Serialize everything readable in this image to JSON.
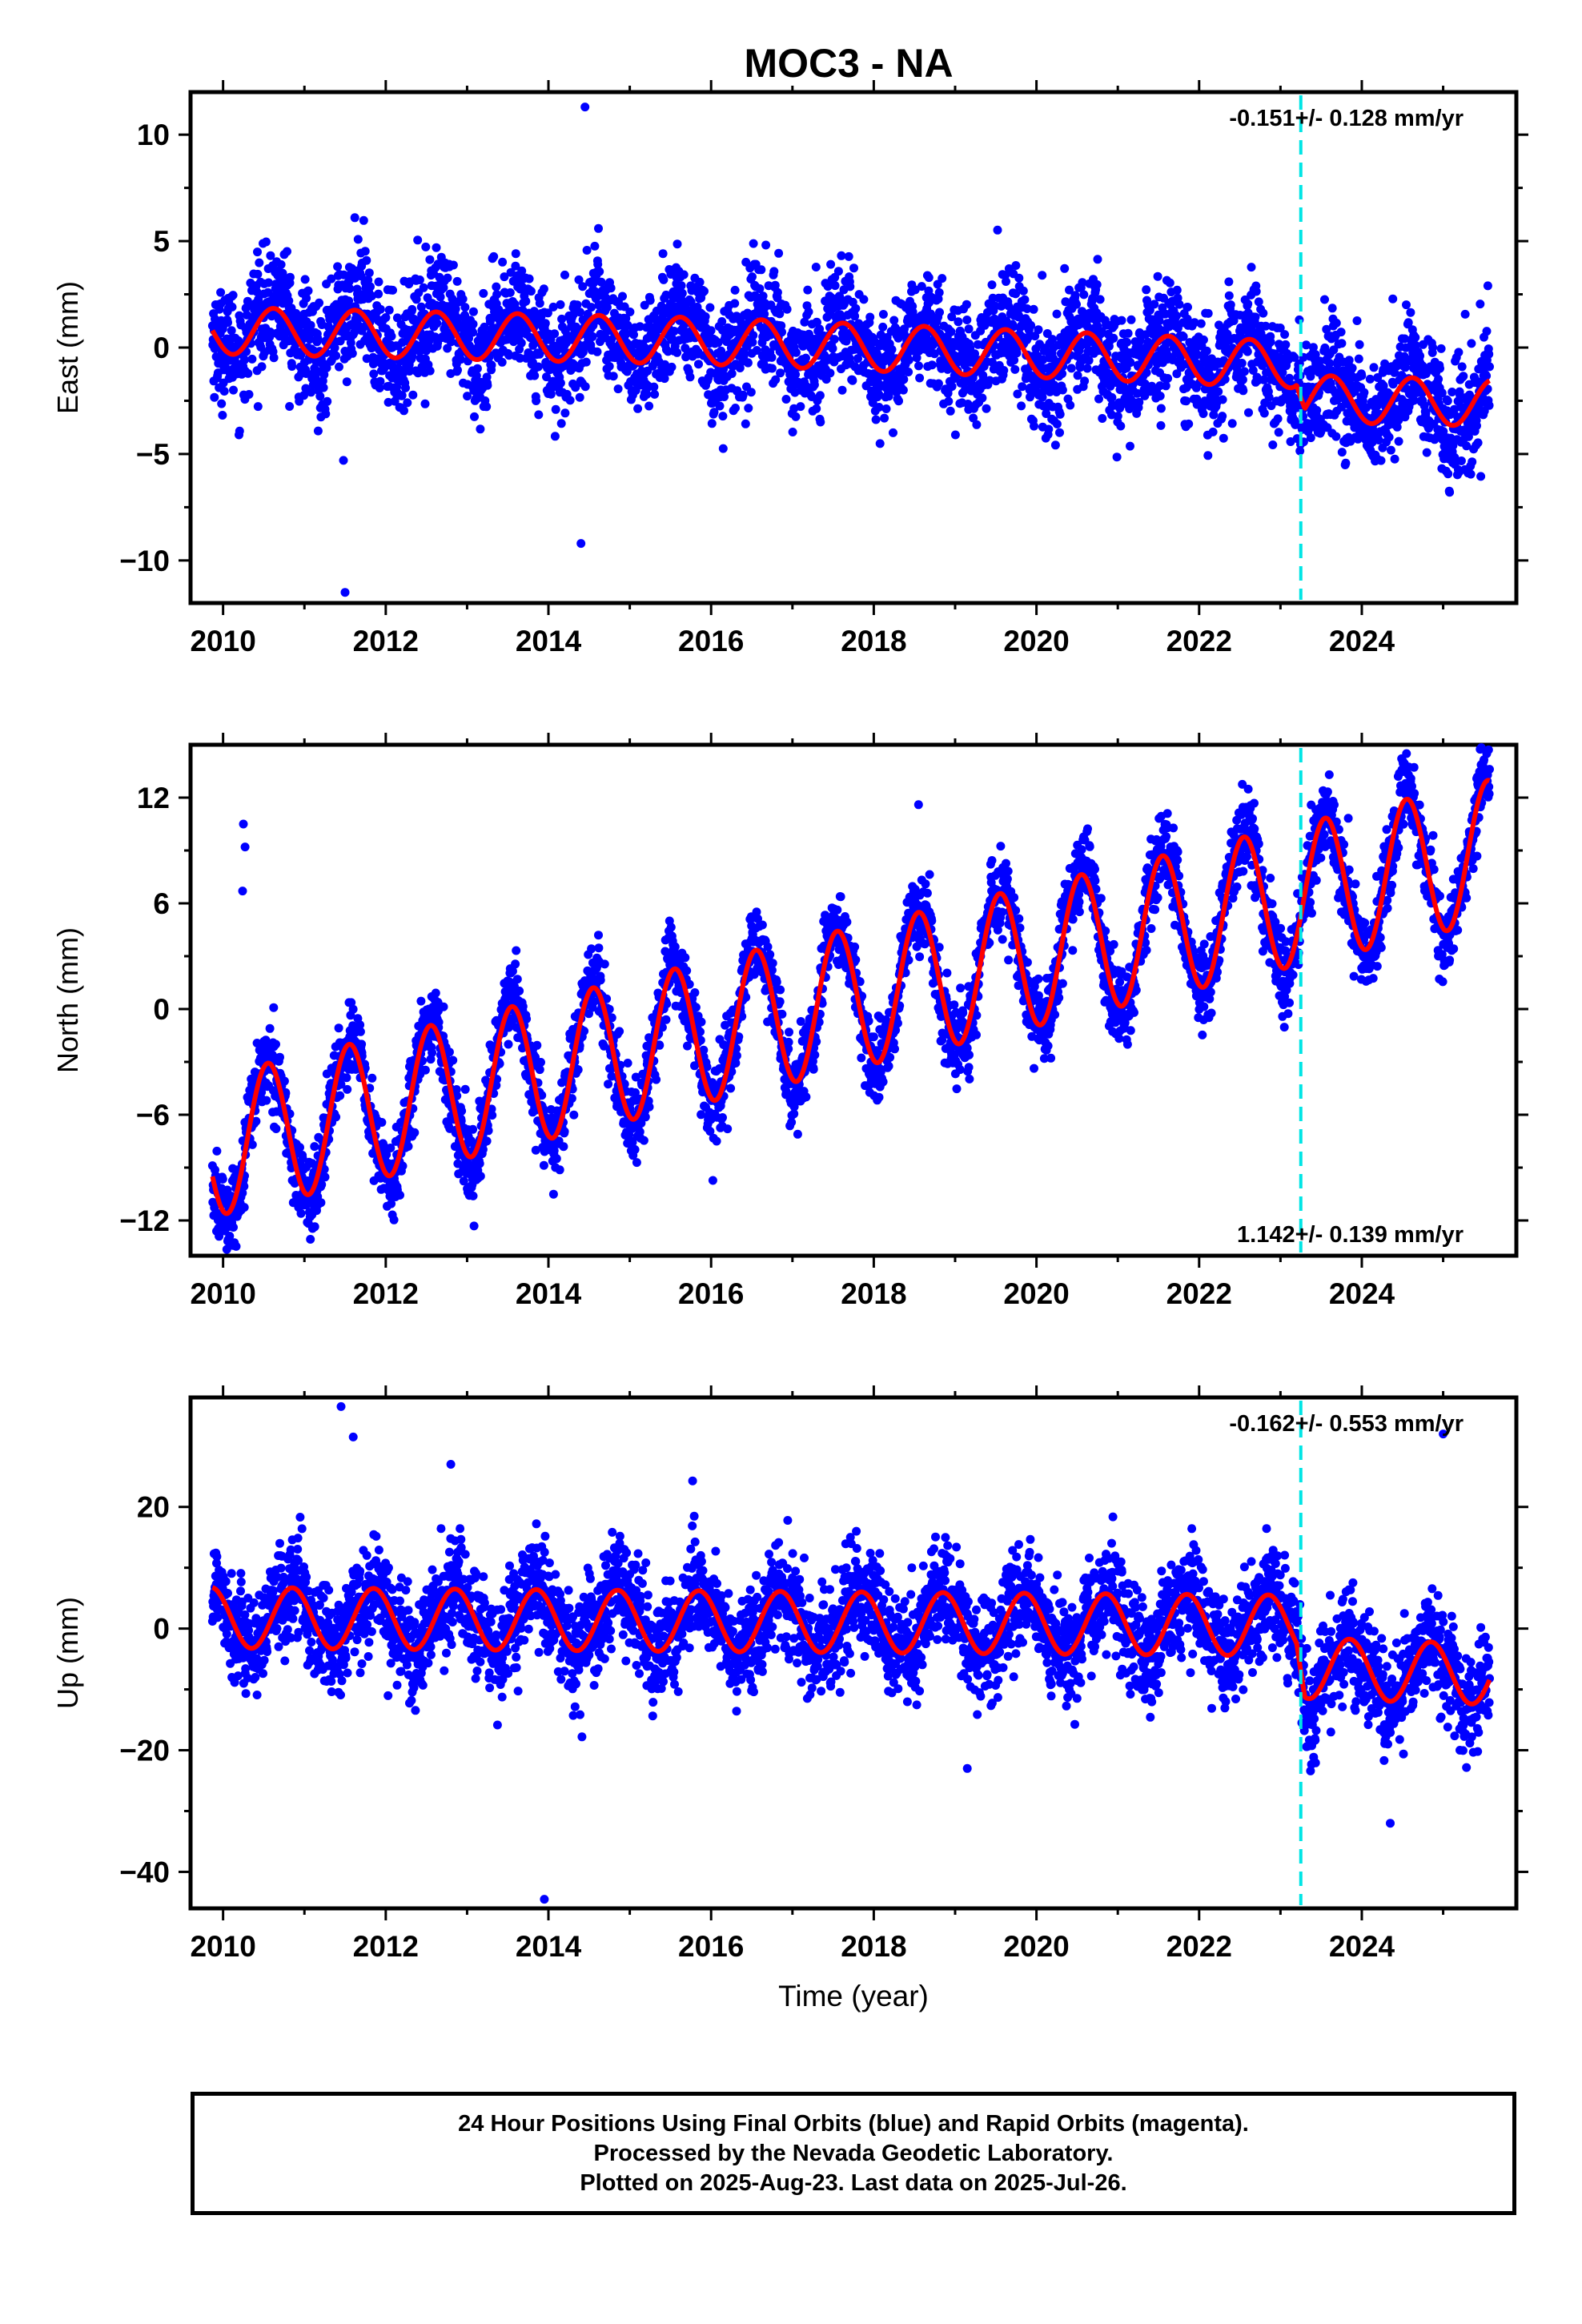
{
  "title": "MOC3 - NA",
  "colors": {
    "data_points": "#0000ff",
    "model_fit": "#ff0000",
    "event_line": "#00e5e5",
    "frame": "#000000"
  },
  "chart_data": [
    {
      "type": "scatter",
      "ylabel": "East (mm)",
      "xlabel": "",
      "xlim": [
        2009.6,
        2025.9
      ],
      "ylim": [
        -12,
        12
      ],
      "xticks": [
        2010,
        2012,
        2014,
        2016,
        2018,
        2020,
        2022,
        2024
      ],
      "yticks": [
        -10,
        -5,
        0,
        5,
        10
      ],
      "rate_label": "-0.151+/- 0.128 mm/yr",
      "rate_position": "top-right",
      "event_line_x": 2023.25,
      "series": [
        {
          "kind": "points",
          "start": 2009.87,
          "end": 2025.57,
          "trend": [
            [
              2009.87,
              1.0
            ],
            [
              2016.0,
              0.4
            ],
            [
              2023.2,
              -0.6
            ],
            [
              2023.3,
              -2.4
            ],
            [
              2025.57,
              -2.6
            ]
          ],
          "amplitude": 1.2,
          "peak_phase": 0.62,
          "scatter": 1.3,
          "outliers": [
            [
              2014.45,
              11.3
            ],
            [
              2011.5,
              -11.5
            ],
            [
              2011.48,
              -5.3
            ],
            [
              2014.4,
              -9.2
            ],
            [
              2011.62,
              6.1
            ],
            [
              2025.55,
              2.9
            ]
          ]
        },
        {
          "kind": "model",
          "start": 2009.87,
          "end": 2025.57,
          "trend": [
            [
              2009.87,
              0.8
            ],
            [
              2016.0,
              0.3
            ],
            [
              2023.2,
              -0.8
            ],
            [
              2023.3,
              -2.4
            ],
            [
              2025.57,
              -2.6
            ]
          ],
          "amplitude": 1.1,
          "peak_phase": 0.62
        }
      ]
    },
    {
      "type": "scatter",
      "ylabel": "North (mm)",
      "xlabel": "",
      "xlim": [
        2009.6,
        2025.9
      ],
      "ylim": [
        -14,
        15
      ],
      "xticks": [
        2010,
        2012,
        2014,
        2016,
        2018,
        2020,
        2022,
        2024
      ],
      "yticks": [
        -12,
        -6,
        0,
        6,
        12
      ],
      "rate_label": "1.142+/- 0.139 mm/yr",
      "rate_position": "bottom-right",
      "event_line_x": 2023.25,
      "series": [
        {
          "kind": "points",
          "start": 2009.87,
          "end": 2025.57,
          "trend": [
            [
              2009.87,
              -7.8
            ],
            [
              2025.57,
              9.0
            ]
          ],
          "amplitude": 4.2,
          "peak_phase": 0.55,
          "scatter": 1.1,
          "outliers": [
            [
              2010.25,
              10.5
            ],
            [
              2010.27,
              9.2
            ],
            [
              2010.24,
              6.7
            ],
            [
              2009.95,
              -12.9
            ],
            [
              2018.55,
              11.6
            ],
            [
              2024.55,
              14.5
            ]
          ]
        },
        {
          "kind": "model",
          "start": 2009.87,
          "end": 2025.57,
          "trend": [
            [
              2009.87,
              -7.8
            ],
            [
              2025.57,
              9.0
            ]
          ],
          "amplitude": 4.0,
          "peak_phase": 0.55
        }
      ]
    },
    {
      "type": "scatter",
      "ylabel": "Up (mm)",
      "xlabel": "Time (year)",
      "xlim": [
        2009.6,
        2025.9
      ],
      "ylim": [
        -46,
        38
      ],
      "xticks": [
        2010,
        2012,
        2014,
        2016,
        2018,
        2020,
        2022,
        2024
      ],
      "yticks": [
        -40,
        -20,
        0,
        20
      ],
      "rate_label": "-0.162+/- 0.553 mm/yr",
      "rate_position": "top-right",
      "event_line_x": 2023.25,
      "series": [
        {
          "kind": "points",
          "start": 2009.87,
          "end": 2025.57,
          "trend": [
            [
              2009.87,
              1.8
            ],
            [
              2023.2,
              0.5
            ],
            [
              2023.3,
              -6.5
            ],
            [
              2025.57,
              -7.5
            ]
          ],
          "amplitude": 5.0,
          "peak_phase": 0.85,
          "scatter": 4.2,
          "outliers": [
            [
              2011.45,
              36.5
            ],
            [
              2011.6,
              31.5
            ],
            [
              2012.8,
              27.0
            ],
            [
              2013.95,
              -44.5
            ],
            [
              2024.35,
              -32.0
            ],
            [
              2025.0,
              32.0
            ],
            [
              2019.15,
              -23.0
            ]
          ]
        },
        {
          "kind": "model",
          "start": 2009.87,
          "end": 2025.57,
          "trend": [
            [
              2009.87,
              1.8
            ],
            [
              2023.2,
              0.5
            ],
            [
              2023.3,
              -6.5
            ],
            [
              2025.57,
              -7.5
            ]
          ],
          "amplitude": 5.0,
          "peak_phase": 0.85
        }
      ]
    }
  ],
  "footer": {
    "line1": "24 Hour Positions Using Final Orbits (blue) and Rapid Orbits (magenta).",
    "line2": "Processed by the Nevada Geodetic Laboratory.",
    "line3": "Plotted on 2025-Aug-23. Last data on 2025-Jul-26."
  }
}
